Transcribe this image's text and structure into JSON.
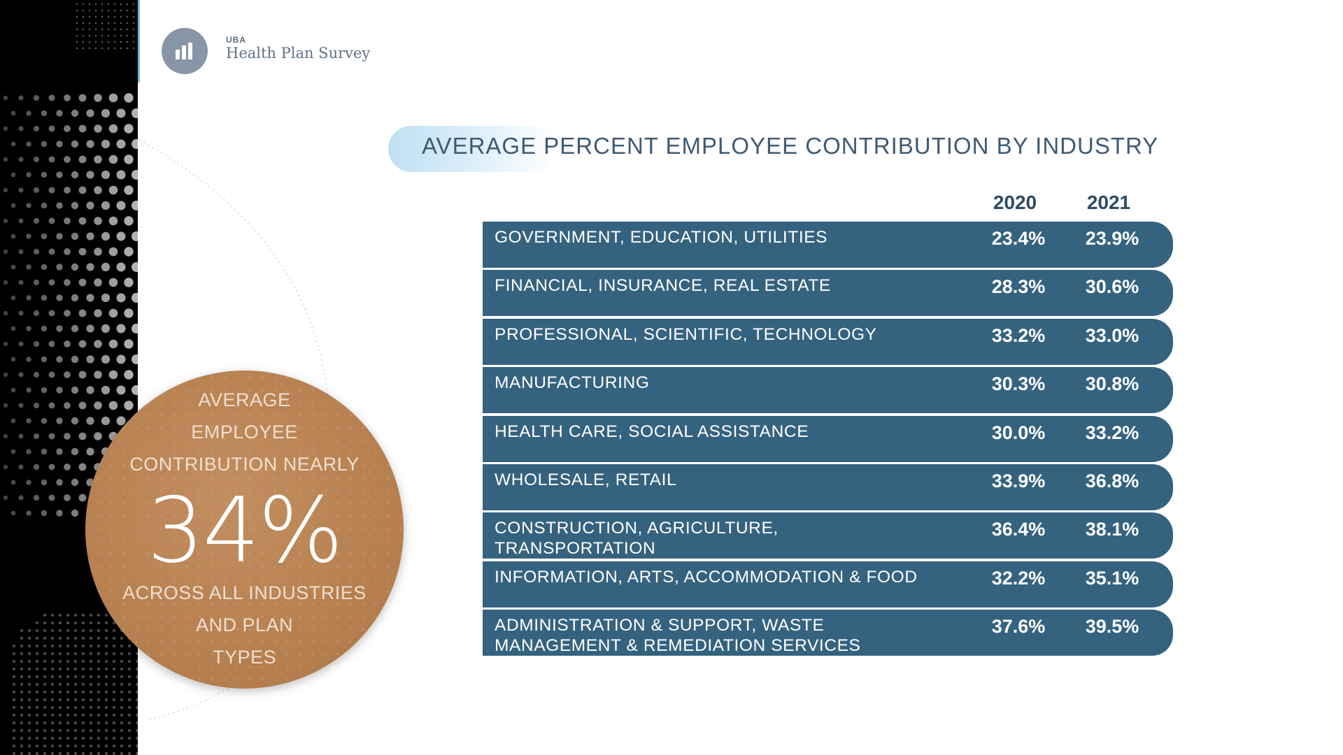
{
  "logo": {
    "small_text": "UBA",
    "name": "Health Plan Survey",
    "icon": "bar-chart-icon"
  },
  "title": "AVERAGE PERCENT EMPLOYEE CONTRIBUTION BY INDUSTRY",
  "callout": {
    "line1": "AVERAGE",
    "line2": "EMPLOYEE",
    "line3": "CONTRIBUTION NEARLY",
    "big_value": "34%",
    "line4": "ACROSS ALL INDUSTRIES",
    "line5": "AND PLAN",
    "line6": "TYPES"
  },
  "colors": {
    "row_background": "#35637f",
    "callout_circle": "#b8824f",
    "left_panel": "#000000",
    "title_text": "#3f5a73"
  },
  "chart_data": {
    "type": "table",
    "title": "AVERAGE PERCENT EMPLOYEE CONTRIBUTION BY INDUSTRY",
    "columns": [
      "2020",
      "2021"
    ],
    "rows": [
      {
        "label": "GOVERNMENT, EDUCATION, UTILITIES",
        "v2020": "23.4%",
        "v2021": "23.9%"
      },
      {
        "label": "FINANCIAL, INSURANCE, REAL ESTATE",
        "v2020": "28.3%",
        "v2021": "30.6%"
      },
      {
        "label": "PROFESSIONAL, SCIENTIFIC, TECHNOLOGY",
        "v2020": "33.2%",
        "v2021": "33.0%"
      },
      {
        "label": "MANUFACTURING",
        "v2020": "30.3%",
        "v2021": "30.8%"
      },
      {
        "label": "HEALTH CARE, SOCIAL ASSISTANCE",
        "v2020": "30.0%",
        "v2021": "33.2%"
      },
      {
        "label": "WHOLESALE, RETAIL",
        "v2020": "33.9%",
        "v2021": "36.8%"
      },
      {
        "label": "CONSTRUCTION, AGRICULTURE, TRANSPORTATION",
        "v2020": "36.4%",
        "v2021": "38.1%"
      },
      {
        "label": "INFORMATION, ARTS, ACCOMMODATION & FOOD",
        "v2020": "32.2%",
        "v2021": "35.1%"
      },
      {
        "label": "ADMINISTRATION & SUPPORT, WASTE MANAGEMENT & REMEDIATION SERVICES",
        "v2020": "37.6%",
        "v2021": "39.5%"
      }
    ]
  }
}
